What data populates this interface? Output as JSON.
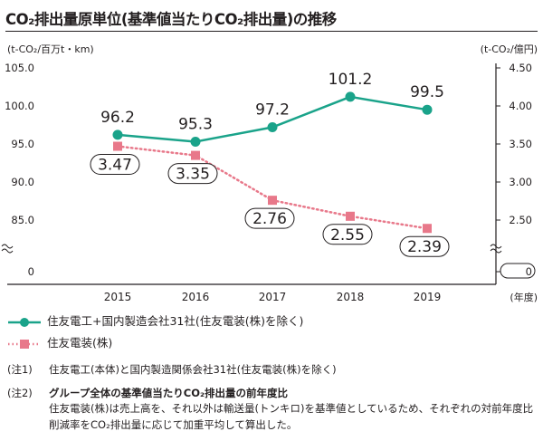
{
  "title": "CO₂排出量原単位(基準値当たりCO₂排出量)の推移",
  "chart_data": {
    "type": "line",
    "categories": [
      "2015",
      "2016",
      "2017",
      "2018",
      "2019"
    ],
    "xlabel": "(年度)",
    "left_axis": {
      "label": "(t-CO₂/百万t・km)",
      "ticks": [
        "105.0",
        "100.0",
        "95.0",
        "90.0",
        "85.0",
        "0"
      ],
      "range": [
        85.0,
        105.0
      ],
      "axis_break": true
    },
    "right_axis": {
      "label": "(t-CO₂/億円)",
      "ticks": [
        "4.50",
        "4.00",
        "3.50",
        "3.00",
        "2.50",
        "0"
      ],
      "range": [
        2.5,
        4.5
      ],
      "axis_break": true
    },
    "series": [
      {
        "name": "住友電工+国内製造会社31社(住友電装(株)を除く)",
        "axis": "left",
        "color": "#1aa38a",
        "line_style": "solid",
        "marker": "circle",
        "values": [
          96.2,
          95.3,
          97.2,
          101.2,
          99.5
        ],
        "labels": [
          "96.2",
          "95.3",
          "97.2",
          "101.2",
          "99.5"
        ]
      },
      {
        "name": "住友電装(株)",
        "axis": "right",
        "color": "#e8788a",
        "line_style": "dotted",
        "marker": "square",
        "values": [
          3.47,
          3.35,
          2.76,
          2.55,
          2.39
        ],
        "labels": [
          "3.47",
          "3.35",
          "2.76",
          "2.55",
          "2.39"
        ]
      }
    ],
    "grid": false,
    "legend_position": "bottom"
  },
  "notes": [
    {
      "key": "(注1)",
      "heading": "住友電工(本体)と国内製造関係会社31社(住友電装(株)を除く)",
      "body": ""
    },
    {
      "key": "(注2)",
      "heading": "グループ全体の基準値当たりCO₂排出量の前年度比",
      "body": "住友電装(株)は売上高を、それ以外は輸送量(トンキロ)を基準値としているため、それぞれの対前年度比削減率をCO₂排出量に応じて加重平均して算出した。"
    }
  ]
}
